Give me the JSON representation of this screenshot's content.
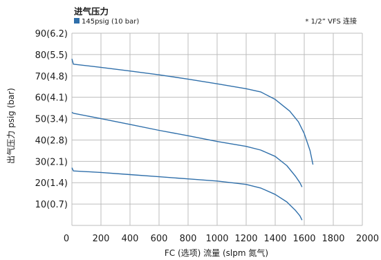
{
  "chart_data": {
    "type": "line",
    "legend_title": "进气压力",
    "legend_entries": [
      {
        "label": "145psig (10 bar)",
        "color": "#2f6faa"
      }
    ],
    "note": "* 1/2”  VFS 连接",
    "xlabel": "FC (选项) 流量 (slpm 氮气)",
    "ylabel": "出气压力 psig (bar)",
    "xlim": [
      0,
      2000
    ],
    "ylim": [
      0,
      90
    ],
    "x_ticks": [
      "0",
      "200",
      "400",
      "600",
      "800",
      "1000",
      "1200",
      "1400",
      "1600",
      "1800",
      "2000"
    ],
    "y_ticks": [
      {
        "value": 90,
        "label": "90(6.2)"
      },
      {
        "value": 80,
        "label": "80(5.5)"
      },
      {
        "value": 70,
        "label": "70(4.8)"
      },
      {
        "value": 60,
        "label": "60(4.1)"
      },
      {
        "value": 50,
        "label": "50(3.4)"
      },
      {
        "value": 40,
        "label": "40(2.8)"
      },
      {
        "value": 30,
        "label": "30(2.1)"
      },
      {
        "value": 20,
        "label": "20(1.4)"
      },
      {
        "value": 10,
        "label": "10(0.7)"
      }
    ],
    "grid": true,
    "series": [
      {
        "color": "#2f6faa",
        "points": [
          [
            0,
            78
          ],
          [
            10,
            75.5
          ],
          [
            200,
            74
          ],
          [
            400,
            72.3
          ],
          [
            600,
            70.5
          ],
          [
            800,
            68.5
          ],
          [
            1000,
            66.3
          ],
          [
            1200,
            64
          ],
          [
            1300,
            62.5
          ],
          [
            1400,
            59
          ],
          [
            1500,
            53.5
          ],
          [
            1560,
            48.5
          ],
          [
            1600,
            43
          ],
          [
            1640,
            35
          ],
          [
            1660,
            28.5
          ]
        ]
      },
      {
        "color": "#2f6faa",
        "points": [
          [
            0,
            53
          ],
          [
            10,
            52.5
          ],
          [
            200,
            50
          ],
          [
            400,
            47.3
          ],
          [
            600,
            44.5
          ],
          [
            800,
            42
          ],
          [
            1000,
            39.3
          ],
          [
            1200,
            37
          ],
          [
            1300,
            35.3
          ],
          [
            1400,
            32.3
          ],
          [
            1480,
            28
          ],
          [
            1540,
            23
          ],
          [
            1570,
            20
          ],
          [
            1585,
            18
          ]
        ]
      },
      {
        "color": "#2f6faa",
        "points": [
          [
            0,
            27
          ],
          [
            10,
            25.5
          ],
          [
            200,
            24.8
          ],
          [
            400,
            23.8
          ],
          [
            600,
            22.8
          ],
          [
            800,
            21.8
          ],
          [
            1000,
            20.8
          ],
          [
            1200,
            19.2
          ],
          [
            1300,
            17.5
          ],
          [
            1400,
            14.5
          ],
          [
            1480,
            11
          ],
          [
            1540,
            7
          ],
          [
            1570,
            4.5
          ],
          [
            1585,
            2.5
          ]
        ]
      }
    ]
  }
}
